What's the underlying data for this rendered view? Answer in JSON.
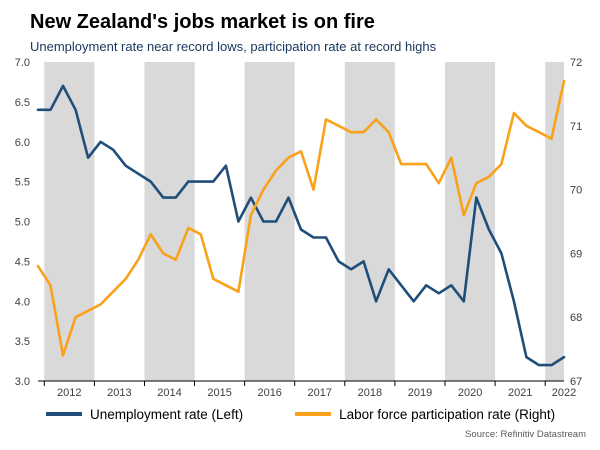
{
  "header": {
    "title": "New Zealand's jobs market is on fire",
    "subtitle": "Unemployment rate near record lows, participation rate at record highs"
  },
  "source": "Source: Refinitiv Datastream",
  "colors": {
    "unemployment": "#1f4e79",
    "participation": "#f9a11b",
    "band": "#d9d9d9",
    "axis": "#000000",
    "tick_text": "#404040"
  },
  "chart_data": {
    "type": "line",
    "frequency": "quarterly",
    "x_start": "2011-Q4",
    "x_end": "2022-Q2",
    "x_tick_years": [
      2012,
      2013,
      2014,
      2015,
      2016,
      2017,
      2018,
      2019,
      2020,
      2021,
      2022
    ],
    "shaded_years": [
      2012,
      2014,
      2016,
      2018,
      2020,
      2022
    ],
    "left_axis": {
      "min": 3.0,
      "max": 7.0,
      "ticks": [
        "7.0",
        "6.5",
        "6.0",
        "5.5",
        "5.0",
        "4.5",
        "4.0",
        "3.5",
        "3.0"
      ]
    },
    "right_axis": {
      "min": 67,
      "max": 72,
      "ticks": [
        "72",
        "71",
        "70",
        "69",
        "68",
        "67"
      ]
    },
    "series": [
      {
        "name": "Unemployment rate (Left)",
        "axis": "left",
        "color": "#1f4e79",
        "values": [
          6.4,
          6.4,
          6.7,
          6.4,
          5.8,
          6.0,
          5.9,
          5.7,
          5.6,
          5.5,
          5.3,
          5.3,
          5.5,
          5.5,
          5.5,
          5.7,
          5.0,
          5.3,
          5.0,
          5.0,
          5.3,
          4.9,
          4.8,
          4.8,
          4.5,
          4.4,
          4.5,
          4.0,
          4.4,
          4.2,
          4.0,
          4.2,
          4.1,
          4.2,
          4.0,
          5.3,
          4.9,
          4.6,
          4.0,
          3.3,
          3.2,
          3.2,
          3.3
        ]
      },
      {
        "name": "Labor force participation rate (Right)",
        "axis": "right",
        "color": "#f9a11b",
        "values": [
          68.8,
          68.5,
          67.4,
          68.0,
          68.1,
          68.2,
          68.4,
          68.6,
          68.9,
          69.3,
          69.0,
          68.9,
          69.4,
          69.3,
          68.6,
          68.5,
          68.4,
          69.6,
          70.0,
          70.3,
          70.5,
          70.6,
          70.0,
          71.1,
          71.0,
          70.9,
          70.9,
          71.1,
          70.9,
          70.4,
          70.4,
          70.4,
          70.1,
          70.5,
          69.6,
          70.1,
          70.2,
          70.4,
          71.2,
          71.0,
          70.9,
          70.8,
          71.7
        ]
      }
    ]
  }
}
